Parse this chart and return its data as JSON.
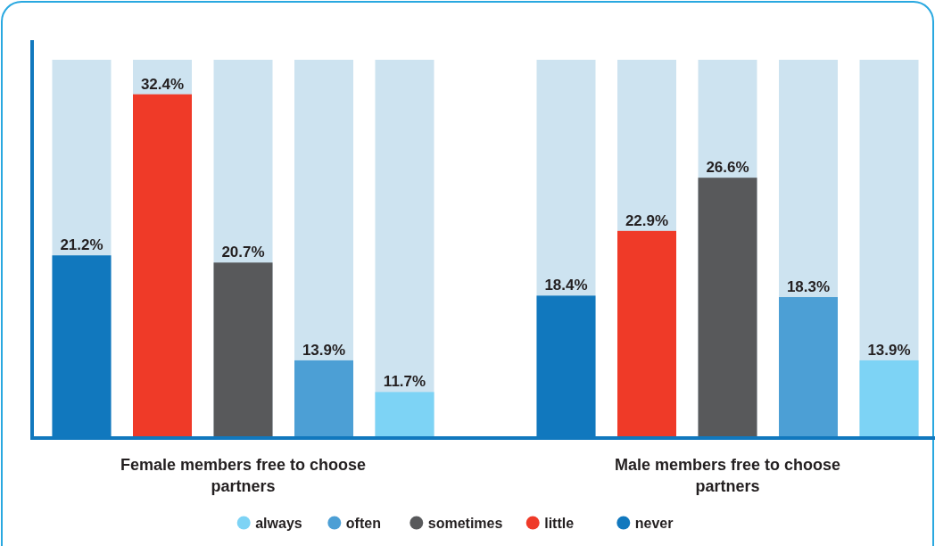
{
  "chart_data": {
    "type": "bar",
    "categories": [
      "Female members free to choose partners",
      "Male members free to choose partners"
    ],
    "series": [
      {
        "name": "never",
        "color": "#1178be",
        "values": [
          21.2,
          18.4
        ],
        "value_labels": [
          "21.2%",
          "18.4%"
        ]
      },
      {
        "name": "little",
        "color": "#ef3a28",
        "values": [
          32.4,
          22.9
        ],
        "value_labels": [
          "32.4%",
          "22.9%"
        ]
      },
      {
        "name": "sometimes",
        "color": "#58595b",
        "values": [
          20.7,
          26.6
        ],
        "value_labels": [
          "20.7%",
          "26.6%"
        ]
      },
      {
        "name": "often",
        "color": "#4c9fd5",
        "values": [
          13.9,
          18.3
        ],
        "value_labels": [
          "13.9%",
          "18.3%"
        ]
      },
      {
        "name": "always",
        "color": "#7dd3f5",
        "values": [
          11.7,
          13.9
        ],
        "value_labels": [
          "11.7%",
          "13.9%"
        ]
      }
    ],
    "ylim": [
      8.5,
      34.8
    ],
    "legend": "bottom",
    "tick_labels": "x"
  }
}
